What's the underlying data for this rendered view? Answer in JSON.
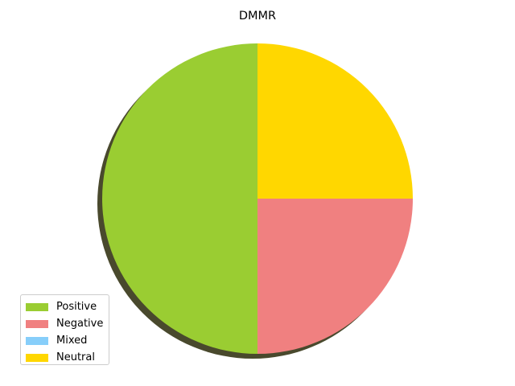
{
  "chart_data": {
    "type": "pie",
    "title": "DMMR",
    "categories": [
      "Positive",
      "Negative",
      "Mixed",
      "Neutral"
    ],
    "values": [
      50,
      25,
      0,
      25
    ],
    "colors": [
      "#9ACD32",
      "#F08080",
      "#87CEFA",
      "#FFD700"
    ],
    "start_angle_deg": 90,
    "direction": "counterclockwise",
    "shadow": true,
    "legend": {
      "placement": "lower-left"
    }
  }
}
